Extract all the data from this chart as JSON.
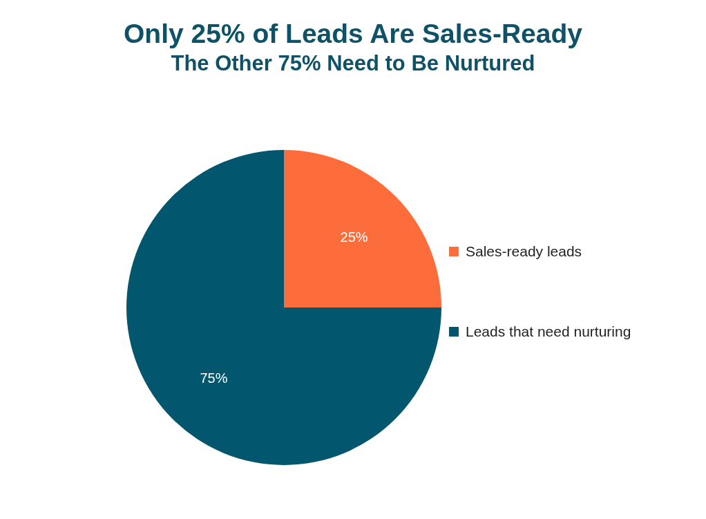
{
  "chart_data": {
    "type": "pie",
    "title": "Only 25% of Leads Are Sales-Ready",
    "subtitle": "The Other 75% Need to Be Nurtured",
    "categories": [
      "Sales-ready leads",
      "Leads that need nurturing"
    ],
    "values": [
      25,
      75
    ],
    "colors": [
      "#fd6c3b",
      "#02576e"
    ],
    "value_labels": [
      "25%",
      "75%"
    ],
    "legend": "right"
  }
}
